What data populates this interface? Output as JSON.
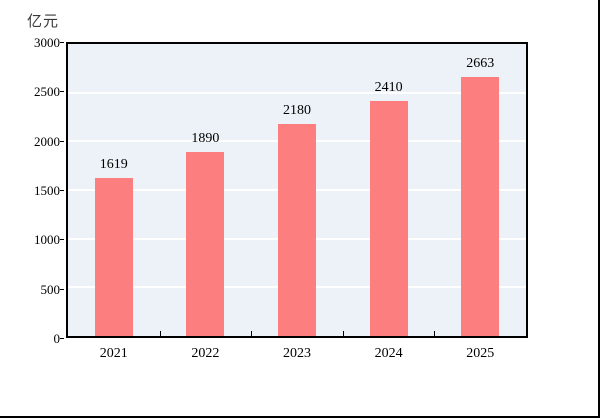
{
  "unit_label": "亿元",
  "colors": {
    "bar": "#FC7E7E",
    "plot_background": "#ECF2F7",
    "gridline": "#FFFFFF",
    "axis_frame": "#000000",
    "text": "#000000",
    "unit_label_text": "#383838",
    "page_border": "#000000"
  },
  "chart_data": {
    "type": "bar",
    "title": "",
    "unit": "亿元",
    "categories": [
      "2021",
      "2022",
      "2023",
      "2024",
      "2025"
    ],
    "values": [
      1619,
      1890,
      2180,
      2410,
      2663
    ],
    "data_labels": [
      "1619",
      "1890",
      "2180",
      "2410",
      "2663"
    ],
    "xlabel": "",
    "ylabel": "亿元",
    "ylim": [
      0,
      3000
    ],
    "ytick_step": 500,
    "yticks": [
      0,
      500,
      1000,
      1500,
      2000,
      2500,
      3000
    ],
    "grid": "horizontal-white",
    "legend_position": "none",
    "bar_color": "#FC7E7E"
  }
}
